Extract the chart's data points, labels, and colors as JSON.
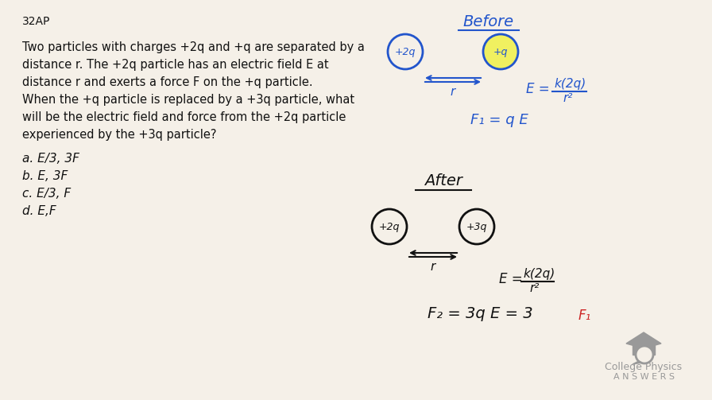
{
  "bg_color": "#f5f0e8",
  "title_label": "32AP",
  "problem_text_lines": [
    "Two particles with charges +2q and +q are separated by a",
    "distance r. The +2q particle has an electric field E at",
    "distance r and exerts a force F on the +q particle.",
    "When the +q particle is replaced by a +3q particle, what",
    "will be the electric field and force from the +2q particle",
    "experienced by the +3q particle?"
  ],
  "choices": [
    "a. E/3, 3F",
    "b. E, 3F",
    "c. E/3, F",
    "d. E,F"
  ],
  "before_label": "Before",
  "after_label": "After",
  "blue_color": "#2255cc",
  "black_color": "#111111",
  "gray_color": "#999999",
  "red_color": "#cc2222",
  "logo_text1": "College Physics",
  "logo_text2": "A N S W E R S"
}
